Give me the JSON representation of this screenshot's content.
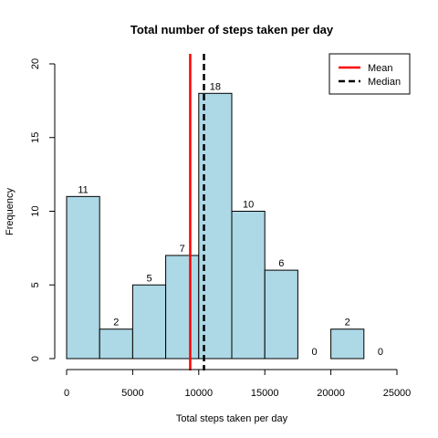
{
  "chart_data": {
    "type": "bar",
    "title": "Total number of steps taken per day",
    "xlabel": "Total steps taken per day",
    "ylabel": "Frequency",
    "bins": [
      {
        "start": 0,
        "end": 2500,
        "count": 11
      },
      {
        "start": 2500,
        "end": 5000,
        "count": 2
      },
      {
        "start": 5000,
        "end": 7500,
        "count": 5
      },
      {
        "start": 7500,
        "end": 10000,
        "count": 7
      },
      {
        "start": 10000,
        "end": 12500,
        "count": 18
      },
      {
        "start": 12500,
        "end": 15000,
        "count": 10
      },
      {
        "start": 15000,
        "end": 17500,
        "count": 6
      },
      {
        "start": 17500,
        "end": 20000,
        "count": 0
      },
      {
        "start": 20000,
        "end": 22500,
        "count": 2
      },
      {
        "start": 22500,
        "end": 25000,
        "count": 0
      }
    ],
    "bar_color": "#ADD8E6",
    "xlim": [
      0,
      25000
    ],
    "ylim": [
      0,
      20
    ],
    "xticks": [
      0,
      5000,
      10000,
      15000,
      20000,
      25000
    ],
    "yticks": [
      0,
      5,
      10,
      15,
      20
    ],
    "mean": 9354,
    "median": 10395,
    "mean_color": "#FF0000",
    "median_color": "#000000",
    "legend": {
      "placement": "top-right",
      "entries": [
        {
          "label": "Mean",
          "color": "#FF0000",
          "style": "solid"
        },
        {
          "label": "Median",
          "color": "#000000",
          "style": "dashed"
        }
      ]
    },
    "grid": false
  }
}
